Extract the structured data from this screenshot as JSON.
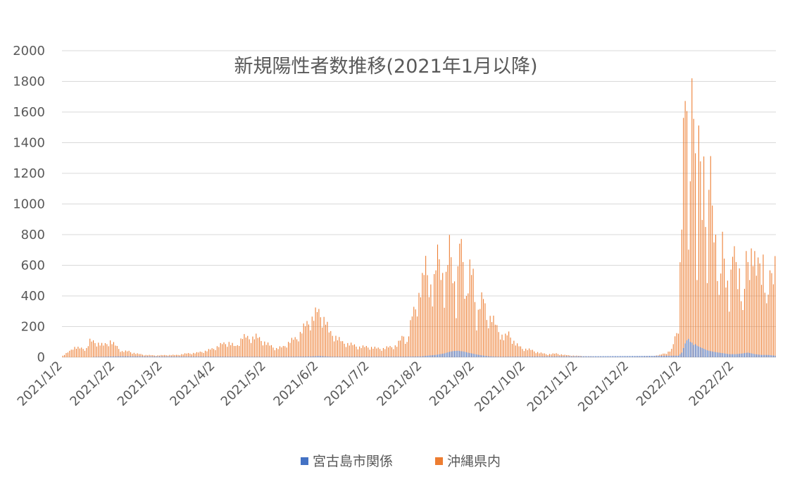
{
  "chart_data": {
    "type": "bar",
    "title": "新規陽性者数推移(2021年1月以降)",
    "xlabel": "",
    "ylabel": "",
    "ylim": [
      0,
      2000
    ],
    "yticks": [
      "0",
      "200",
      "400",
      "600",
      "800",
      "1000",
      "1200",
      "1400",
      "1600",
      "1800",
      "2000"
    ],
    "x_tick_labels": [
      "2021/1/2",
      "2021/2/2",
      "2021/3/2",
      "2021/4/2",
      "2021/5/2",
      "2021/6/2",
      "2021/7/2",
      "2021/8/2",
      "2021/9/2",
      "2021/10/2",
      "2021/11/2",
      "2021/12/2",
      "2022/1/2",
      "2022/2/2"
    ],
    "x_range": [
      "2021-01-02",
      "2022-02-26"
    ],
    "grid": "horizontal",
    "legend_position": "bottom",
    "series": [
      {
        "name": "宮古島市関係",
        "color": "#4472C4",
        "points": [
          [
            "2021-01-20",
            2
          ],
          [
            "2021-01-28",
            4
          ],
          [
            "2021-02-05",
            6
          ],
          [
            "2021-04-20",
            3
          ],
          [
            "2021-05-10",
            3
          ],
          [
            "2021-05-28",
            5
          ],
          [
            "2021-06-02",
            8
          ],
          [
            "2021-06-10",
            3
          ],
          [
            "2021-07-25",
            4
          ],
          [
            "2021-08-01",
            5
          ],
          [
            "2021-08-05",
            10
          ],
          [
            "2021-08-10",
            15
          ],
          [
            "2021-08-15",
            25
          ],
          [
            "2021-08-18",
            35
          ],
          [
            "2021-08-20",
            40
          ],
          [
            "2021-08-23",
            42
          ],
          [
            "2021-08-26",
            38
          ],
          [
            "2021-08-29",
            30
          ],
          [
            "2021-09-02",
            20
          ],
          [
            "2021-09-06",
            12
          ],
          [
            "2021-09-10",
            6
          ],
          [
            "2021-09-16",
            3
          ],
          [
            "2021-12-31",
            10
          ],
          [
            "2022-01-02",
            30
          ],
          [
            "2022-01-03",
            60
          ],
          [
            "2022-01-04",
            90
          ],
          [
            "2022-01-05",
            110
          ],
          [
            "2022-01-06",
            120
          ],
          [
            "2022-01-07",
            100
          ],
          [
            "2022-01-08",
            95
          ],
          [
            "2022-01-09",
            80
          ],
          [
            "2022-01-10",
            85
          ],
          [
            "2022-01-11",
            75
          ],
          [
            "2022-01-12",
            70
          ],
          [
            "2022-01-13",
            65
          ],
          [
            "2022-01-14",
            60
          ],
          [
            "2022-01-15",
            55
          ],
          [
            "2022-01-17",
            45
          ],
          [
            "2022-01-19",
            40
          ],
          [
            "2022-01-21",
            35
          ],
          [
            "2022-01-24",
            30
          ],
          [
            "2022-01-27",
            25
          ],
          [
            "2022-01-30",
            20
          ],
          [
            "2022-02-03",
            20
          ],
          [
            "2022-02-07",
            25
          ],
          [
            "2022-02-10",
            30
          ],
          [
            "2022-02-14",
            20
          ],
          [
            "2022-02-18",
            15
          ],
          [
            "2022-02-22",
            15
          ],
          [
            "2022-02-26",
            10
          ]
        ]
      },
      {
        "name": "沖縄県内",
        "color": "#ED7D31",
        "points": [
          [
            "2021-01-02",
            10
          ],
          [
            "2021-01-06",
            40
          ],
          [
            "2021-01-08",
            70
          ],
          [
            "2021-01-12",
            60
          ],
          [
            "2021-01-16",
            60
          ],
          [
            "2021-01-18",
            110
          ],
          [
            "2021-01-22",
            100
          ],
          [
            "2021-01-26",
            80
          ],
          [
            "2021-01-30",
            110
          ],
          [
            "2021-02-02",
            80
          ],
          [
            "2021-02-06",
            40
          ],
          [
            "2021-02-10",
            40
          ],
          [
            "2021-02-14",
            25
          ],
          [
            "2021-02-20",
            15
          ],
          [
            "2021-02-26",
            12
          ],
          [
            "2021-03-05",
            15
          ],
          [
            "2021-03-10",
            15
          ],
          [
            "2021-03-16",
            25
          ],
          [
            "2021-03-22",
            30
          ],
          [
            "2021-03-28",
            45
          ],
          [
            "2021-04-01",
            60
          ],
          [
            "2021-04-06",
            90
          ],
          [
            "2021-04-10",
            100
          ],
          [
            "2021-04-14",
            70
          ],
          [
            "2021-04-18",
            140
          ],
          [
            "2021-04-22",
            130
          ],
          [
            "2021-04-26",
            140
          ],
          [
            "2021-04-30",
            110
          ],
          [
            "2021-05-04",
            80
          ],
          [
            "2021-05-08",
            60
          ],
          [
            "2021-05-12",
            70
          ],
          [
            "2021-05-16",
            110
          ],
          [
            "2021-05-20",
            130
          ],
          [
            "2021-05-24",
            200
          ],
          [
            "2021-05-28",
            250
          ],
          [
            "2021-06-01",
            310
          ],
          [
            "2021-06-03",
            290
          ],
          [
            "2021-06-06",
            250
          ],
          [
            "2021-06-08",
            170
          ],
          [
            "2021-06-12",
            140
          ],
          [
            "2021-06-16",
            100
          ],
          [
            "2021-06-20",
            90
          ],
          [
            "2021-06-26",
            70
          ],
          [
            "2021-07-02",
            70
          ],
          [
            "2021-07-06",
            60
          ],
          [
            "2021-07-10",
            60
          ],
          [
            "2021-07-14",
            70
          ],
          [
            "2021-07-18",
            80
          ],
          [
            "2021-07-22",
            150
          ],
          [
            "2021-07-24",
            100
          ],
          [
            "2021-07-27",
            280
          ],
          [
            "2021-07-30",
            380
          ],
          [
            "2021-08-02",
            500
          ],
          [
            "2021-08-04",
            630
          ],
          [
            "2021-08-06",
            560
          ],
          [
            "2021-08-08",
            390
          ],
          [
            "2021-08-11",
            700
          ],
          [
            "2021-08-13",
            720
          ],
          [
            "2021-08-15",
            380
          ],
          [
            "2021-08-18",
            760
          ],
          [
            "2021-08-20",
            690
          ],
          [
            "2021-08-22",
            300
          ],
          [
            "2021-08-24",
            780
          ],
          [
            "2021-08-26",
            690
          ],
          [
            "2021-08-28",
            400
          ],
          [
            "2021-08-30",
            580
          ],
          [
            "2021-09-01",
            550
          ],
          [
            "2021-09-03",
            250
          ],
          [
            "2021-09-05",
            370
          ],
          [
            "2021-09-07",
            400
          ],
          [
            "2021-09-09",
            270
          ],
          [
            "2021-09-12",
            270
          ],
          [
            "2021-09-15",
            200
          ],
          [
            "2021-09-19",
            130
          ],
          [
            "2021-09-22",
            160
          ],
          [
            "2021-09-26",
            90
          ],
          [
            "2021-09-30",
            60
          ],
          [
            "2021-10-05",
            50
          ],
          [
            "2021-10-10",
            30
          ],
          [
            "2021-10-15",
            20
          ],
          [
            "2021-10-20",
            25
          ],
          [
            "2021-10-25",
            15
          ],
          [
            "2021-10-31",
            10
          ],
          [
            "2021-11-05",
            8
          ],
          [
            "2021-11-10",
            5
          ],
          [
            "2021-11-16",
            3
          ],
          [
            "2021-11-24",
            2
          ],
          [
            "2021-12-02",
            2
          ],
          [
            "2021-12-10",
            5
          ],
          [
            "2021-12-16",
            8
          ],
          [
            "2021-12-20",
            15
          ],
          [
            "2021-12-24",
            30
          ],
          [
            "2021-12-27",
            50
          ],
          [
            "2021-12-29",
            130
          ],
          [
            "2021-12-31",
            220
          ],
          [
            "2022-01-01",
            620
          ],
          [
            "2022-01-02",
            980
          ],
          [
            "2022-01-03",
            1420
          ],
          [
            "2022-01-04",
            1760
          ],
          [
            "2022-01-05",
            1530
          ],
          [
            "2022-01-06",
            780
          ],
          [
            "2022-01-07",
            1640
          ],
          [
            "2022-01-08",
            1820
          ],
          [
            "2022-01-09",
            1830
          ],
          [
            "2022-01-10",
            1210
          ],
          [
            "2022-01-11",
            530
          ],
          [
            "2022-01-12",
            1440
          ],
          [
            "2022-01-13",
            1420
          ],
          [
            "2022-01-14",
            1280
          ],
          [
            "2022-01-15",
            1310
          ],
          [
            "2022-01-16",
            1000
          ],
          [
            "2022-01-17",
            440
          ],
          [
            "2022-01-18",
            1150
          ],
          [
            "2022-01-19",
            1250
          ],
          [
            "2022-01-20",
            1100
          ],
          [
            "2022-01-21",
            1070
          ],
          [
            "2022-01-22",
            800
          ],
          [
            "2022-01-24",
            370
          ],
          [
            "2022-01-26",
            780
          ],
          [
            "2022-01-28",
            650
          ],
          [
            "2022-01-30",
            350
          ],
          [
            "2022-02-01",
            690
          ],
          [
            "2022-02-03",
            690
          ],
          [
            "2022-02-05",
            580
          ],
          [
            "2022-02-07",
            280
          ],
          [
            "2022-02-09",
            660
          ],
          [
            "2022-02-11",
            720
          ],
          [
            "2022-02-13",
            700
          ],
          [
            "2022-02-15",
            560
          ],
          [
            "2022-02-17",
            680
          ],
          [
            "2022-02-19",
            670
          ],
          [
            "2022-02-21",
            320
          ],
          [
            "2022-02-23",
            540
          ],
          [
            "2022-02-25",
            680
          ],
          [
            "2022-02-26",
            660
          ]
        ]
      }
    ]
  }
}
